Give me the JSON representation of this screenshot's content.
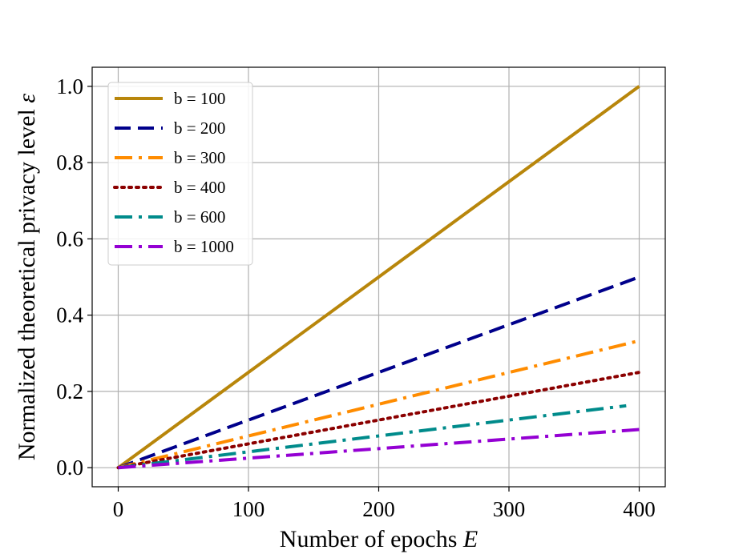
{
  "chart_data": {
    "type": "line",
    "title": "",
    "xlabel_text": "Number of epochs ",
    "xlabel_symbol": "E",
    "ylabel_text": "Normalized theoretical privacy level ",
    "ylabel_symbol": "ε",
    "xlim": [
      -20,
      420
    ],
    "ylim": [
      -0.05,
      1.05
    ],
    "xticks": [
      0,
      100,
      200,
      300,
      400
    ],
    "xtick_labels": [
      "0",
      "100",
      "200",
      "300",
      "400"
    ],
    "yticks": [
      0.0,
      0.2,
      0.4,
      0.6,
      0.8,
      1.0
    ],
    "ytick_labels": [
      "0.0",
      "0.2",
      "0.4",
      "0.6",
      "0.8",
      "1.0"
    ],
    "grid": true,
    "legend_position": "top-left",
    "series": [
      {
        "name": "b = 100",
        "color": "#b8860b",
        "style": "solid",
        "x": [
          0,
          400
        ],
        "y": [
          0.0,
          1.0
        ]
      },
      {
        "name": "b = 200",
        "color": "#00008b",
        "style": "dashed",
        "x": [
          0,
          400
        ],
        "y": [
          0.0,
          0.5
        ]
      },
      {
        "name": "b = 300",
        "color": "#ff8c00",
        "style": "dashdot",
        "x": [
          0,
          400
        ],
        "y": [
          0.0,
          0.333
        ]
      },
      {
        "name": "b = 400",
        "color": "#8b0000",
        "style": "dotted",
        "x": [
          0,
          400
        ],
        "y": [
          0.0,
          0.25
        ]
      },
      {
        "name": "b = 600",
        "color": "#008b8b",
        "style": "dashdot",
        "x": [
          0,
          390
        ],
        "y": [
          0.0,
          0.1625
        ]
      },
      {
        "name": "b = 1000",
        "color": "#9400d3",
        "style": "dashdot",
        "x": [
          0,
          400
        ],
        "y": [
          0.0,
          0.1
        ]
      }
    ]
  }
}
